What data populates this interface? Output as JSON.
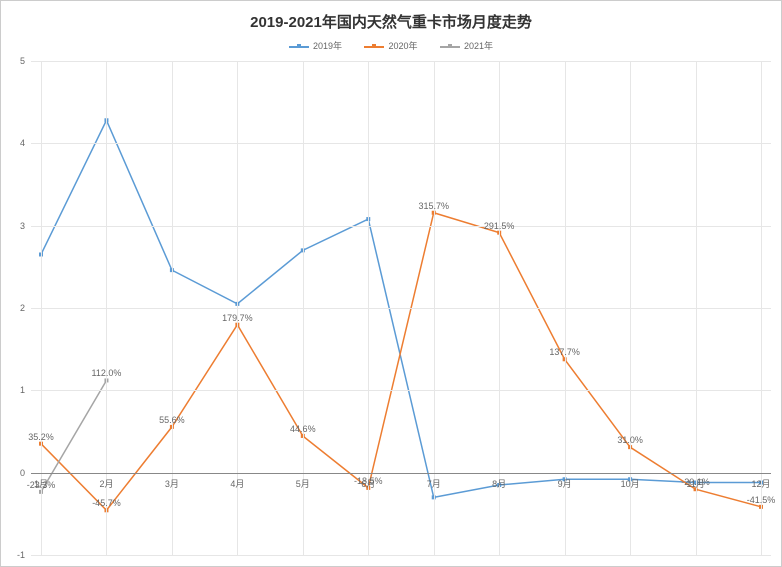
{
  "chart": {
    "type": "line",
    "title": "2019-2021年国内天然气重卡市场月度走势",
    "title_fontsize": 15,
    "title_color": "#333333",
    "background_color": "#ffffff",
    "plot_bg": "#ffffff",
    "grid_color": "#e6e6e6",
    "axis_color": "#888888",
    "label_fontsize": 9,
    "xlim": [
      1,
      12
    ],
    "ylim": [
      -1,
      5
    ],
    "ytick_step": 1,
    "x_categories": [
      "1月",
      "2月",
      "3月",
      "4月",
      "5月",
      "6月",
      "7月",
      "8月",
      "9月",
      "10月",
      "11月",
      "12月"
    ],
    "legend": {
      "items": [
        {
          "label": "2019年",
          "color": "#5b9bd5"
        },
        {
          "label": "2020年",
          "color": "#ed7d31"
        },
        {
          "label": "2021年",
          "color": "#a5a5a5"
        }
      ],
      "fontsize": 9,
      "position": "top-center"
    },
    "series": [
      {
        "name": "2019年",
        "color": "#5b9bd5",
        "line_width": 1.5,
        "marker": "square",
        "marker_size": 4,
        "values": [
          2.65,
          4.28,
          2.46,
          2.05,
          2.7,
          3.08,
          -0.3,
          -0.15,
          -0.08,
          -0.08,
          -0.12,
          -0.12
        ],
        "show_labels": false
      },
      {
        "name": "2020年",
        "color": "#ed7d31",
        "line_width": 1.5,
        "marker": "square",
        "marker_size": 4,
        "values": [
          0.352,
          -0.457,
          0.556,
          1.797,
          0.446,
          -0.185,
          3.157,
          2.915,
          1.377,
          0.31,
          -0.201,
          -0.415
        ],
        "labels": [
          "35.2%",
          "-45.7%",
          "55.6%",
          "179.7%",
          "44.6%",
          "-18.5%",
          "315.7%",
          "291.5%",
          "137.7%",
          "31.0%",
          "-20.1%",
          "-41.5%"
        ],
        "show_labels": true
      },
      {
        "name": "2021年",
        "color": "#a5a5a5",
        "line_width": 1.5,
        "marker": "square",
        "marker_size": 4,
        "values": [
          -0.233,
          1.12
        ],
        "labels": [
          "-23.3%",
          "112.0%"
        ],
        "show_labels": true
      }
    ]
  }
}
